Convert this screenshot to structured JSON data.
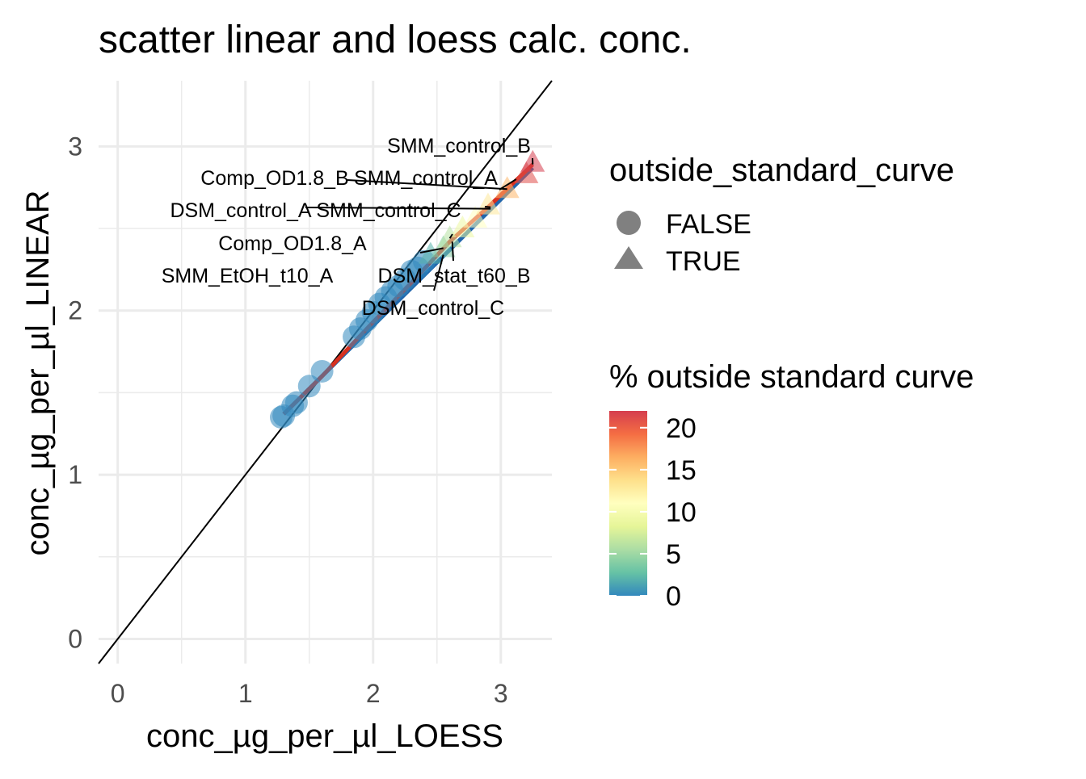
{
  "chart_data": {
    "type": "scatter",
    "title": "scatter linear and loess calc. conc.",
    "xlabel": "conc_µg_per_µl_LOESS",
    "ylabel": "conc_µg_per_µl_LINEAR",
    "xlim": [
      -0.15,
      3.4
    ],
    "ylim": [
      -0.15,
      3.4
    ],
    "x_ticks": [
      "0",
      "1",
      "2",
      "3"
    ],
    "y_ticks": [
      "0",
      "1",
      "2",
      "3"
    ],
    "grid": true,
    "legend_position": "right",
    "shape_legend": {
      "title": "outside_standard_curve",
      "items": [
        {
          "label": "FALSE",
          "shape": "circle"
        },
        {
          "label": "TRUE",
          "shape": "triangle"
        }
      ]
    },
    "color_legend": {
      "title": "% outside standard curve",
      "ticks": [
        "0",
        "5",
        "10",
        "15",
        "20"
      ],
      "range": [
        0,
        22
      ],
      "colors": [
        "#3288bd",
        "#66c2a5",
        "#abdda4",
        "#e6f598",
        "#ffffbf",
        "#fee08b",
        "#fdae61",
        "#f46d43",
        "#d53e4f"
      ]
    },
    "reference_line": {
      "slope": 1,
      "intercept": 0,
      "color": "#000000"
    },
    "fit_lines": [
      {
        "name": "linear",
        "color": "#2166ac",
        "x": [
          1.3,
          3.25
        ],
        "y": [
          1.37,
          2.87
        ]
      },
      {
        "name": "loess",
        "color": "#d7301f",
        "x": [
          1.3,
          1.6,
          2.0,
          2.3,
          2.6,
          2.9,
          3.25
        ],
        "y": [
          1.37,
          1.6,
          1.93,
          2.17,
          2.42,
          2.63,
          2.89
        ]
      }
    ],
    "points": [
      {
        "x": 1.28,
        "y": 1.35,
        "pct": 0,
        "outside": false
      },
      {
        "x": 1.3,
        "y": 1.36,
        "pct": 0,
        "outside": false
      },
      {
        "x": 1.37,
        "y": 1.42,
        "pct": 0,
        "outside": false
      },
      {
        "x": 1.4,
        "y": 1.44,
        "pct": 0,
        "outside": false
      },
      {
        "x": 1.5,
        "y": 1.54,
        "pct": 0,
        "outside": false
      },
      {
        "x": 1.6,
        "y": 1.63,
        "pct": 0,
        "outside": false
      },
      {
        "x": 1.85,
        "y": 1.84,
        "pct": 0,
        "outside": false
      },
      {
        "x": 1.9,
        "y": 1.89,
        "pct": 0,
        "outside": false
      },
      {
        "x": 1.95,
        "y": 1.94,
        "pct": 0,
        "outside": false
      },
      {
        "x": 2.0,
        "y": 1.99,
        "pct": 0,
        "outside": false
      },
      {
        "x": 2.05,
        "y": 2.04,
        "pct": 0,
        "outside": false
      },
      {
        "x": 2.1,
        "y": 2.08,
        "pct": 0,
        "outside": false
      },
      {
        "x": 2.15,
        "y": 2.12,
        "pct": 0,
        "outside": false
      },
      {
        "x": 2.2,
        "y": 2.15,
        "pct": 0,
        "outside": false
      },
      {
        "x": 2.25,
        "y": 2.19,
        "pct": 0,
        "outside": false
      },
      {
        "x": 2.3,
        "y": 2.24,
        "pct": 0,
        "outside": false
      },
      {
        "x": 2.35,
        "y": 2.26,
        "pct": 0,
        "outside": false
      },
      {
        "x": 2.4,
        "y": 2.3,
        "pct": 0,
        "outside": false
      },
      {
        "x": 2.45,
        "y": 2.34,
        "pct": 2,
        "outside": true
      },
      {
        "x": 2.55,
        "y": 2.38,
        "pct": 4,
        "outside": true
      },
      {
        "x": 2.6,
        "y": 2.44,
        "pct": 6,
        "outside": true
      },
      {
        "x": 2.7,
        "y": 2.5,
        "pct": 9,
        "outside": true
      },
      {
        "x": 2.8,
        "y": 2.56,
        "pct": 11,
        "outside": true
      },
      {
        "x": 2.9,
        "y": 2.64,
        "pct": 13,
        "outside": true
      },
      {
        "x": 3.05,
        "y": 2.74,
        "pct": 16,
        "outside": true
      },
      {
        "x": 3.2,
        "y": 2.83,
        "pct": 21,
        "outside": true
      },
      {
        "x": 3.25,
        "y": 2.9,
        "pct": 22,
        "outside": true
      }
    ],
    "annotations": [
      {
        "label": "SMM_control_B",
        "x": 3.25,
        "y": 2.89
      },
      {
        "label": "Comp_OD1.8_B",
        "x": 3.05,
        "y": 2.74
      },
      {
        "label": "SMM_control_A",
        "x": 3.12,
        "y": 2.8
      },
      {
        "label": "DSM_control_A",
        "x": 2.92,
        "y": 2.62
      },
      {
        "label": "SMM_control_C",
        "x": 2.92,
        "y": 2.63
      },
      {
        "label": "Comp_OD1.8_A",
        "x": 2.6,
        "y": 2.44
      },
      {
        "label": "SMM_EtOH_t10_A",
        "x": 2.55,
        "y": 2.38
      },
      {
        "label": "DSM_stat_t60_B",
        "x": 2.62,
        "y": 2.42
      },
      {
        "label": "DSM_control_C",
        "x": 2.55,
        "y": 2.34
      }
    ]
  }
}
